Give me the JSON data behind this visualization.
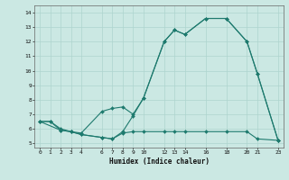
{
  "xlabel": "Humidex (Indice chaleur)",
  "bg_color": "#cbe8e3",
  "line_color": "#1e7a6e",
  "grid_color": "#aed4ce",
  "ylim": [
    4.7,
    14.5
  ],
  "xlim": [
    -0.5,
    23.5
  ],
  "yticks": [
    5,
    6,
    7,
    8,
    9,
    10,
    11,
    12,
    13,
    14
  ],
  "xticks": [
    0,
    1,
    2,
    3,
    4,
    6,
    7,
    8,
    9,
    10,
    12,
    13,
    14,
    16,
    18,
    20,
    21,
    23
  ],
  "line1": {
    "x": [
      0,
      1,
      2,
      3,
      4,
      6,
      7,
      8,
      9,
      10,
      12,
      13,
      14,
      16,
      18,
      20,
      21,
      23
    ],
    "y": [
      6.5,
      6.5,
      6.0,
      5.8,
      5.7,
      7.2,
      7.4,
      7.5,
      7.0,
      8.1,
      12.0,
      12.8,
      12.5,
      13.6,
      13.6,
      12.0,
      9.8,
      5.2
    ]
  },
  "line2": {
    "x": [
      0,
      1,
      2,
      3,
      4,
      6,
      7,
      8,
      9,
      10,
      12,
      13,
      14,
      16,
      18,
      20,
      21,
      23
    ],
    "y": [
      6.5,
      6.5,
      5.9,
      5.8,
      5.6,
      5.4,
      5.3,
      5.8,
      6.9,
      8.1,
      12.0,
      12.8,
      12.5,
      13.6,
      13.6,
      12.0,
      9.8,
      5.2
    ]
  },
  "line3": {
    "x": [
      0,
      2,
      3,
      4,
      6,
      7,
      8,
      9,
      10,
      12,
      13,
      14,
      16,
      18,
      20,
      21,
      23
    ],
    "y": [
      6.5,
      5.9,
      5.8,
      5.6,
      5.4,
      5.3,
      5.7,
      5.8,
      5.8,
      5.8,
      5.8,
      5.8,
      5.8,
      5.8,
      5.8,
      5.3,
      5.2
    ]
  }
}
